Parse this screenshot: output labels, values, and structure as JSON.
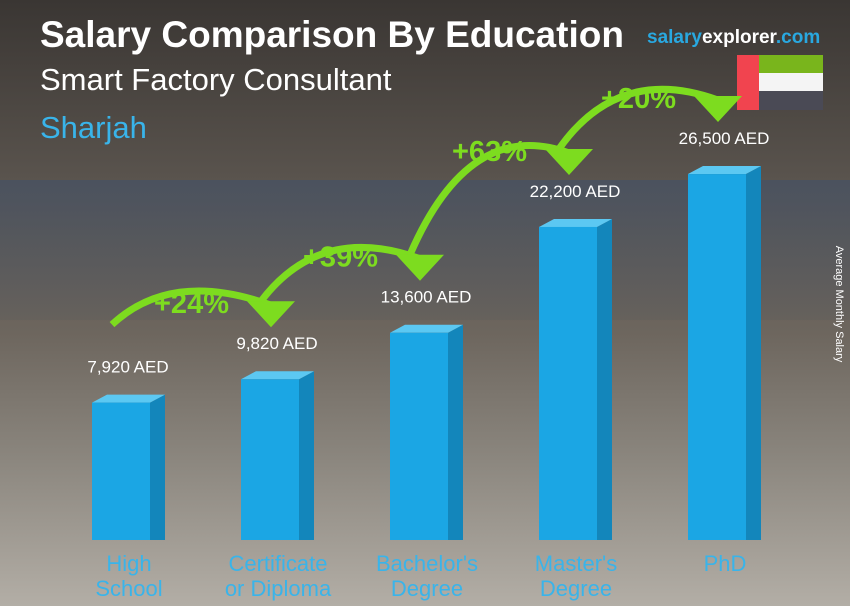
{
  "chart_data": {
    "type": "bar",
    "title": "Salary Comparison By Education",
    "subtitle": "Smart Factory Consultant",
    "location": "Sharjah",
    "ylabel": "Average Monthly Salary",
    "categories": [
      [
        "High",
        "School"
      ],
      [
        "Certificate",
        "or Diploma"
      ],
      [
        "Bachelor's",
        "Degree"
      ],
      [
        "Master's",
        "Degree"
      ],
      [
        "PhD",
        ""
      ]
    ],
    "values": [
      7920,
      9820,
      13600,
      22200,
      26500
    ],
    "value_labels": [
      "7,920 AED",
      "9,820 AED",
      "13,600 AED",
      "22,200 AED",
      "26,500 AED"
    ],
    "changes": [
      "+24%",
      "+39%",
      "+63%",
      "+20%"
    ],
    "colors": {
      "bar": "#1ba6e4",
      "bar_side": "#1386bb",
      "bar_top": "#5cc8f2",
      "arrow": "#7ddc1f",
      "label": "#39b4ea"
    }
  },
  "brand": {
    "part1": "salary",
    "part2": "explorer",
    ".com": ".com"
  }
}
